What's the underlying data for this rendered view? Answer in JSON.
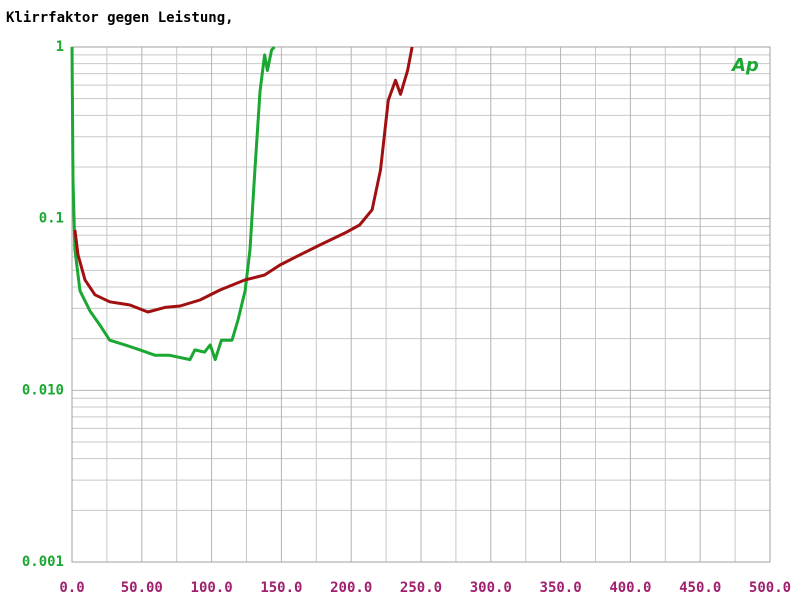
{
  "chart_data": {
    "type": "line",
    "title": "Klirrfaktor gegen Leistung,",
    "annotation": "Ap",
    "log_y": true,
    "grid": true,
    "xlim": [
      0,
      500
    ],
    "ylim": [
      0.001,
      1
    ],
    "xticks": [
      {
        "value": 0,
        "label": "0.0"
      },
      {
        "value": 50,
        "label": "50.00"
      },
      {
        "value": 100,
        "label": "100.0"
      },
      {
        "value": 150,
        "label": "150.0"
      },
      {
        "value": 200,
        "label": "200.0"
      },
      {
        "value": 250,
        "label": "250.0"
      },
      {
        "value": 300,
        "label": "300.0"
      },
      {
        "value": 350,
        "label": "350.0"
      },
      {
        "value": 400,
        "label": "400.0"
      },
      {
        "value": 450,
        "label": "450.0"
      },
      {
        "value": 500,
        "label": "500.0"
      }
    ],
    "yticks": [
      1,
      0.1,
      {
        "value": 0.01,
        "label": "0.010"
      },
      0.001
    ],
    "x_minor_ticks": [
      25,
      75,
      125,
      175,
      225,
      275,
      325,
      375,
      425,
      475
    ],
    "y_minor_ticks": [
      0.002,
      0.003,
      0.004,
      0.005,
      0.006,
      0.007,
      0.008,
      0.009,
      0.02,
      0.03,
      0.04,
      0.05,
      0.06,
      0.07,
      0.08,
      0.09,
      0.2,
      0.3,
      0.4,
      0.5,
      0.6,
      0.7,
      0.8,
      0.9
    ],
    "series": [
      {
        "color": "#1aa832",
        "x": [
          0,
          0.7,
          2.1,
          5.7,
          12.9,
          20,
          27,
          38,
          48.7,
          59.5,
          70,
          84.5,
          88,
          95,
          99,
          102.6,
          107,
          114.6,
          118.9,
          124,
          127.5,
          131,
          134.7,
          138,
          140,
          143,
          145
        ],
        "values": [
          1,
          0.168,
          0.066,
          0.038,
          0.029,
          0.024,
          0.0196,
          0.0184,
          0.0172,
          0.016,
          0.016,
          0.0151,
          0.0172,
          0.0167,
          0.0184,
          0.0151,
          0.0196,
          0.0196,
          0.0257,
          0.038,
          0.066,
          0.192,
          0.55,
          0.9,
          0.73,
          0.96,
          1
        ]
      },
      {
        "color": "#a01010",
        "x": [
          2.1,
          4.3,
          9.3,
          16.5,
          27,
          41.5,
          54.4,
          66.6,
          77.4,
          91.7,
          106,
          124,
          138,
          149,
          163.3,
          177.7,
          195.6,
          206,
          215,
          221,
          226.6,
          231.7,
          235.3,
          240.4,
          243.6
        ],
        "values": [
          0.086,
          0.0616,
          0.044,
          0.036,
          0.0328,
          0.0314,
          0.0286,
          0.0304,
          0.031,
          0.0336,
          0.0384,
          0.044,
          0.047,
          0.0537,
          0.0616,
          0.0703,
          0.0826,
          0.0919,
          0.1126,
          0.192,
          0.49,
          0.64,
          0.53,
          0.73,
          1
        ]
      }
    ]
  }
}
